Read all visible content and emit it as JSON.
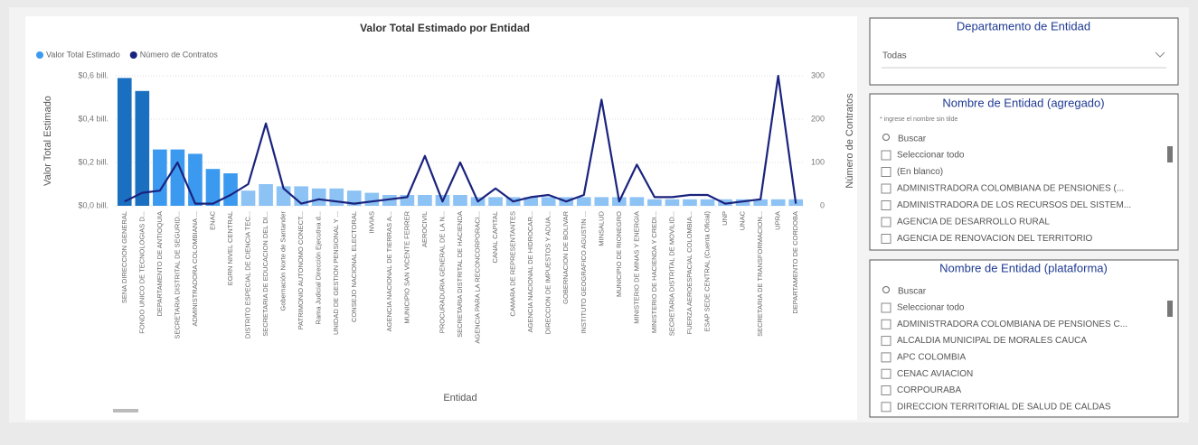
{
  "chart_data": {
    "type": "combo",
    "title": "Valor Total Estimado por Entidad",
    "x_label": "Entidad",
    "y_label": "Valor Total Estimado",
    "y2_label": "Número de Contratos",
    "categories": [
      "SENA DIRECCION GENERAL",
      "FONDO UNICO DE TECNOLOGIAS D...",
      "DEPARTAMENTO DE ANTIOQUIA",
      "SECRETARIA DISTRITAL DE SEGURID...",
      "ADMINISTRADORA COLOMBIANA ...",
      "ENAC",
      "EGRN NIVEL CENTRAL",
      "DISTRITO ESPECIAL DE CIENCIA TEC...",
      "SECRETARIA DE EDUCACION DEL DI...",
      "Gobernación Norte de Santander",
      "PATRIMONIO AUTONOMO CONECT...",
      "Rama Judicial Dirección Ejecutiva d...",
      "UNIDAD DE GESTION PENSIONAL Y ...",
      "CONSEJO NACIONAL ELECTORAL",
      "INVIAS",
      "AGENCIA NACIONAL DE TIERRAS A...",
      "MUNICIPIO SAN VICENTE FERRER",
      "AEROCIVIL",
      "PROCURADURIA GENERAL DE LA N...",
      "SECRETARIA DISTRITAL DE HACIENDA",
      "AGENCIA PARA LA RECONCORPORACI...",
      "CANAL CAPITAL",
      "CAMARA DE REPRESENTANTES",
      "AGENCIA NACIONAL DE HIDROCAR...",
      "DIRECCION DE IMPUESTOS Y ADUA...",
      "GOBERNACION DE BOLIVAR",
      "INSTITUTO GEOGRAFICO AGUSTIN ...",
      "MINSALUD",
      "MUNICIPIO DE RIONEGRO",
      "MINISTERIO DE MINAS Y ENERGIA",
      "MINISTERIO DE HACIENDA Y CREDI...",
      "SECRETARIA DISTRITAL DE MOVILID...",
      "FUERZA AEROESPACIAL COLOMBIA...",
      "ESAP SEDE CENTRAL (Cuenta Oficial)",
      "UNP",
      "UNAC",
      "SECRETARIA DE TRANSFORMACION...",
      "UPRA",
      "DEPARTAMENTO DE CORDOBA"
    ],
    "series": [
      {
        "name": "Valor Total Estimado",
        "type": "bar",
        "color": "#3b9af0",
        "colors": [
          "#1a6fc0",
          "#1a6fc0",
          "#3b9af0",
          "#3b9af0",
          "#3b9af0",
          "#3b9af0",
          "#3b9af0",
          "#8cc2f4",
          "#8cc2f4",
          "#8cc2f4",
          "#8cc2f4",
          "#8cc2f4",
          "#8cc2f4",
          "#8cc2f4",
          "#8cc2f4",
          "#8cc2f4",
          "#8cc2f4",
          "#8cc2f4",
          "#8cc2f4",
          "#8cc2f4",
          "#8cc2f4",
          "#8cc2f4",
          "#8cc2f4",
          "#8cc2f4",
          "#8cc2f4",
          "#8cc2f4",
          "#8cc2f4",
          "#8cc2f4",
          "#8cc2f4",
          "#8cc2f4",
          "#8cc2f4",
          "#8cc2f4",
          "#8cc2f4",
          "#8cc2f4",
          "#8cc2f4",
          "#8cc2f4",
          "#8cc2f4",
          "#8cc2f4",
          "#8cc2f4"
        ],
        "values": [
          0.59,
          0.53,
          0.26,
          0.26,
          0.24,
          0.17,
          0.15,
          0.07,
          0.1,
          0.09,
          0.09,
          0.08,
          0.08,
          0.07,
          0.06,
          0.05,
          0.05,
          0.05,
          0.05,
          0.05,
          0.04,
          0.04,
          0.04,
          0.04,
          0.04,
          0.04,
          0.04,
          0.04,
          0.04,
          0.04,
          0.03,
          0.03,
          0.03,
          0.03,
          0.03,
          0.03,
          0.03,
          0.03,
          0.03
        ]
      },
      {
        "name": "Número de Contratos",
        "type": "line",
        "axis": "y2",
        "color": "#1a237e",
        "values": [
          10,
          30,
          35,
          100,
          5,
          5,
          25,
          50,
          190,
          40,
          5,
          15,
          10,
          5,
          10,
          15,
          20,
          115,
          10,
          100,
          10,
          40,
          10,
          20,
          25,
          10,
          25,
          245,
          10,
          95,
          20,
          20,
          25,
          25,
          5,
          10,
          15,
          300,
          5
        ]
      }
    ],
    "ylim": [
      0,
      0.6
    ],
    "yticks": [
      {
        "value": 0,
        "label": "$0,0 bill."
      },
      {
        "value": 0.2,
        "label": "$0,2 bill."
      },
      {
        "value": 0.4,
        "label": "$0,4 bill."
      },
      {
        "value": 0.6,
        "label": "$0,6 bill."
      }
    ],
    "y2lim": [
      0,
      300
    ],
    "y2ticks": [
      0,
      100,
      200,
      300
    ],
    "grid": true,
    "legend": "top-left"
  },
  "slicers": {
    "departamento": {
      "title": "Departamento de Entidad",
      "selected": "Todas"
    },
    "agregado": {
      "title": "Nombre de Entidad (agregado)",
      "hint": "* ingrese el nombre sin tilde",
      "search": "Buscar",
      "items": [
        "Seleccionar todo",
        "(En blanco)",
        "ADMINISTRADORA COLOMBIANA DE PENSIONES (...",
        "ADMINISTRADORA DE LOS RECURSOS DEL SISTEM...",
        "AGENCIA DE DESARROLLO RURAL",
        "AGENCIA DE RENOVACION DEL TERRITORIO"
      ]
    },
    "plataforma": {
      "title": "Nombre de Entidad (plataforma)",
      "search": "Buscar",
      "items": [
        "Seleccionar todo",
        "ADMINISTRADORA COLOMBIANA DE PENSIONES C...",
        "ALCALDIA MUNICIPAL DE MORALES CAUCA",
        "APC COLOMBIA",
        "CENAC AVIACION",
        "CORPOURABA",
        "DIRECCION TERRITORIAL DE SALUD DE CALDAS"
      ]
    }
  }
}
